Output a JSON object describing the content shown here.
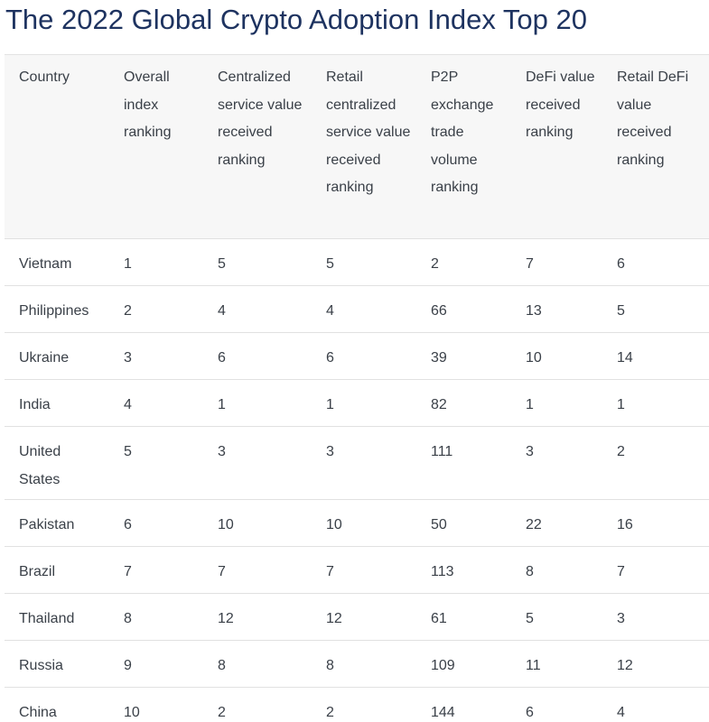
{
  "title": "The 2022 Global Crypto Adoption Index Top 20",
  "table": {
    "headers": [
      "Country",
      "Overall index ranking",
      "Centralized service value received ranking",
      "Retail centralized service value received ranking",
      "P2P exchange trade volume ranking",
      "DeFi value received ranking",
      "Retail DeFi value received ranking"
    ],
    "rows": [
      [
        "Vietnam",
        "1",
        "5",
        "5",
        "2",
        "7",
        "6"
      ],
      [
        "Philippines",
        "2",
        "4",
        "4",
        "66",
        "13",
        "5"
      ],
      [
        "Ukraine",
        "3",
        "6",
        "6",
        "39",
        "10",
        "14"
      ],
      [
        "India",
        "4",
        "1",
        "1",
        "82",
        "1",
        "1"
      ],
      [
        "United States",
        "5",
        "3",
        "3",
        "111",
        "3",
        "2"
      ],
      [
        "Pakistan",
        "6",
        "10",
        "10",
        "50",
        "22",
        "16"
      ],
      [
        "Brazil",
        "7",
        "7",
        "7",
        "113",
        "8",
        "7"
      ],
      [
        "Thailand",
        "8",
        "12",
        "12",
        "61",
        "5",
        "3"
      ],
      [
        "Russia",
        "9",
        "8",
        "8",
        "109",
        "11",
        "12"
      ],
      [
        "China",
        "10",
        "2",
        "2",
        "144",
        "6",
        "4"
      ]
    ]
  }
}
